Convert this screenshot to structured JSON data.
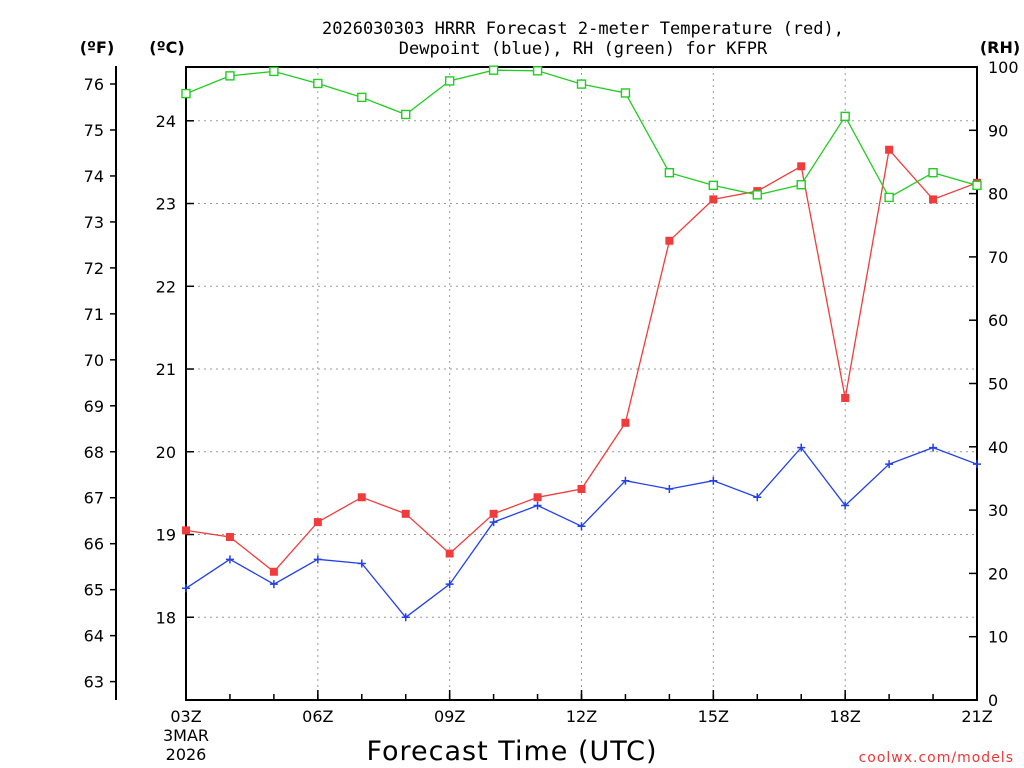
{
  "chart_data": {
    "type": "line",
    "title_line1": "2026030303 HRRR Forecast 2-meter Temperature (red),",
    "title_line2": "Dewpoint (blue), RH (green) for KFPR",
    "xlabel": "Forecast Time (UTC)",
    "credit": "coolwx.com/models",
    "axis_units": {
      "fahrenheit": "(ºF)",
      "celsius": "(ºC)",
      "rh": "(RH)"
    },
    "x_hours": [
      0,
      1,
      2,
      3,
      4,
      5,
      6,
      7,
      8,
      9,
      10,
      11,
      12,
      13,
      14,
      15,
      16,
      17,
      18
    ],
    "x_ticks": [
      {
        "hour": 0,
        "label": "03Z",
        "sub1": "3MAR",
        "sub2": "2026"
      },
      {
        "hour": 3,
        "label": "06Z"
      },
      {
        "hour": 6,
        "label": "09Z"
      },
      {
        "hour": 9,
        "label": "12Z"
      },
      {
        "hour": 12,
        "label": "15Z"
      },
      {
        "hour": 15,
        "label": "18Z"
      },
      {
        "hour": 18,
        "label": "21Z"
      }
    ],
    "c_range": [
      17,
      24.65
    ],
    "c_ticks": [
      18,
      19,
      20,
      21,
      22,
      23,
      24
    ],
    "f_ticks": [
      63,
      64,
      65,
      66,
      67,
      68,
      69,
      70,
      71,
      72,
      73,
      74,
      75,
      76
    ],
    "rh_range": [
      0,
      100
    ],
    "rh_ticks": [
      0,
      10,
      20,
      30,
      40,
      50,
      60,
      70,
      80,
      90,
      100
    ],
    "series": [
      {
        "name": "Temperature",
        "color": "#f03c3c",
        "axis": "celsius",
        "marker": "filled-square",
        "values": [
          19.05,
          18.97,
          18.55,
          19.15,
          19.45,
          19.25,
          18.77,
          19.25,
          19.45,
          19.55,
          20.35,
          22.55,
          23.05,
          23.15,
          23.45,
          20.65,
          23.65,
          23.05,
          23.25
        ]
      },
      {
        "name": "Dewpoint",
        "color": "#2240e8",
        "axis": "celsius",
        "marker": "plus",
        "values": [
          18.35,
          18.7,
          18.4,
          18.7,
          18.65,
          18.0,
          18.4,
          19.15,
          19.35,
          19.1,
          19.65,
          19.55,
          19.65,
          19.45,
          20.05,
          19.35,
          19.85,
          20.05,
          19.85
        ]
      },
      {
        "name": "RH",
        "color": "#22cc22",
        "axis": "rh",
        "marker": "open-square",
        "values": [
          95.8,
          98.6,
          99.3,
          97.4,
          95.2,
          92.5,
          97.8,
          99.5,
          99.4,
          97.3,
          95.9,
          83.3,
          81.3,
          79.8,
          81.4,
          92.2,
          79.4,
          83.3,
          81.3
        ]
      }
    ]
  }
}
